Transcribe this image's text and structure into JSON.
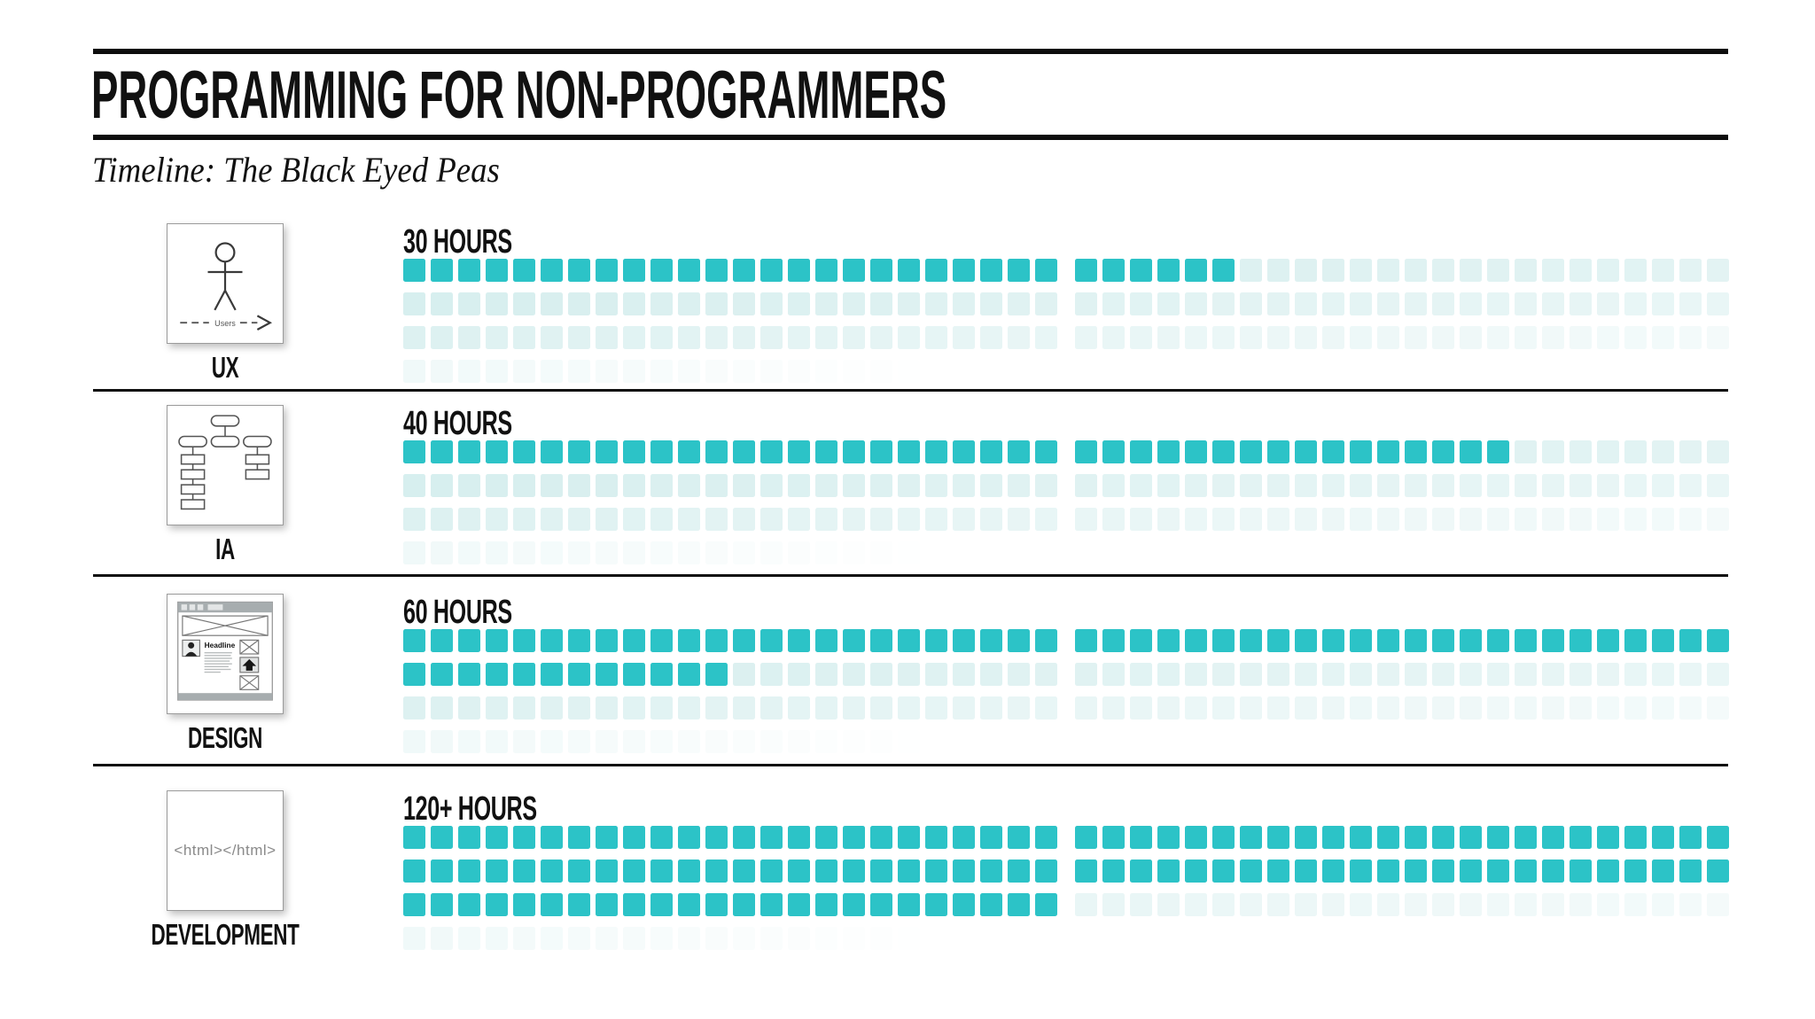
{
  "page": {
    "title": "PROGRAMMING FOR NON-PROGRAMMERS",
    "subtitle": "Timeline: The Black Eyed Peas"
  },
  "colors": {
    "filled_square": "#2cc3c7",
    "faint_square_rgb": "110,195,195",
    "text": "#111111",
    "rule": "#0d0d0d"
  },
  "grid": {
    "rows_per_section": 4,
    "columns_per_row": 48,
    "group_split": 24,
    "hours_per_square": 1
  },
  "sections": [
    {
      "id": "ux",
      "label": "UX",
      "hours_label": "30 HOURS",
      "hours": 30,
      "filled_squares": 30,
      "icon": "user-stick-figure-icon",
      "icon_caption": "Users"
    },
    {
      "id": "ia",
      "label": "IA",
      "hours_label": "40 HOURS",
      "hours": 40,
      "filled_squares": 40,
      "icon": "sitemap-flowchart-icon"
    },
    {
      "id": "design",
      "label": "DESIGN",
      "hours_label": "60 HOURS",
      "hours": 60,
      "filled_squares": 60,
      "icon": "webpage-wireframe-icon",
      "icon_headline": "Headline"
    },
    {
      "id": "development",
      "label": "DEVELOPMENT",
      "hours_label": "120+ HOURS",
      "hours": 120,
      "filled_squares": 120,
      "icon": "html-code-icon",
      "icon_code": "<html></html>"
    }
  ],
  "chart_data": {
    "type": "bar",
    "variant": "waffle-pictograph",
    "title": "PROGRAMMING FOR NON-PROGRAMMERS",
    "subtitle": "Timeline: The Black Eyed Peas",
    "categories": [
      "UX",
      "IA",
      "DESIGN",
      "DEVELOPMENT"
    ],
    "values": [
      30,
      40,
      60,
      120
    ],
    "value_labels": [
      "30 HOURS",
      "40 HOURS",
      "60 HOURS",
      "120+ HOURS"
    ],
    "unit": "hours",
    "square_value": 1,
    "layout": "each category shows 4 rows of 48 unit squares (two groups of 24); filled teal squares count the hours, remaining squares are faint placeholders fading toward bottom-right"
  }
}
